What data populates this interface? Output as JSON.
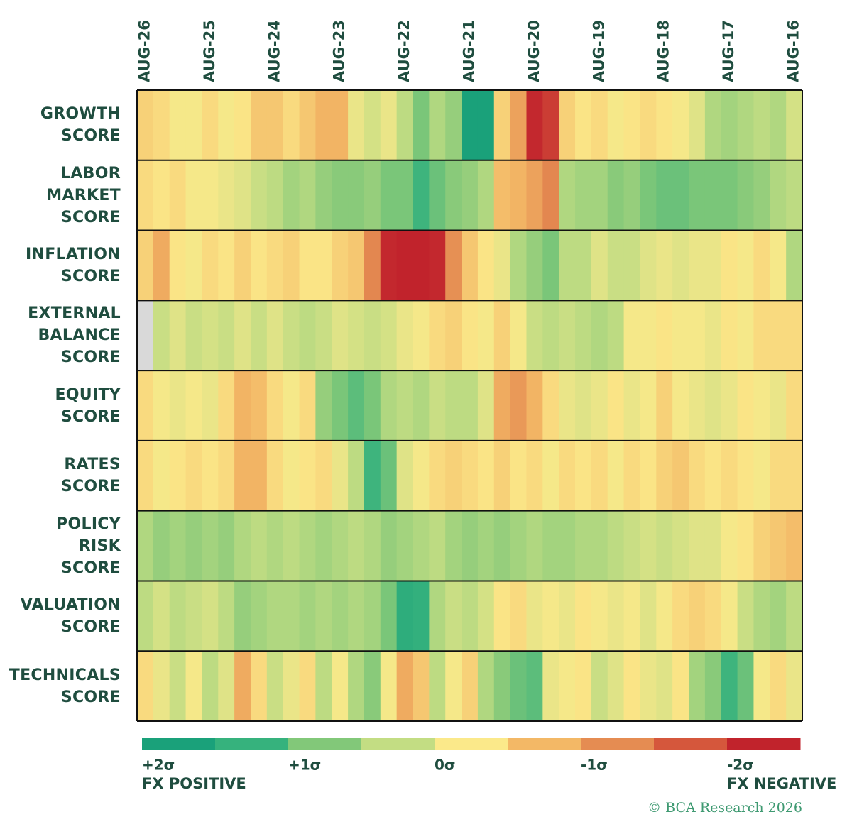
{
  "chart_data": {
    "type": "heatmap",
    "categories": [
      "AUG-26",
      null,
      null,
      null,
      "AUG-25",
      null,
      null,
      null,
      "AUG-24",
      null,
      null,
      null,
      "AUG-23",
      null,
      null,
      null,
      "AUG-22",
      null,
      null,
      null,
      "AUG-21",
      null,
      null,
      null,
      "AUG-20",
      null,
      null,
      null,
      "AUG-19",
      null,
      null,
      null,
      "AUG-18",
      null,
      null,
      null,
      "AUG-17",
      null,
      null,
      null,
      "AUG-16"
    ],
    "series": [
      {
        "name": "GROWTH\nSCORE",
        "values": [
          -0.5,
          -0.4,
          -0.2,
          -0.2,
          -0.4,
          -0.2,
          -0.3,
          -0.6,
          -0.6,
          -0.4,
          -0.6,
          -0.8,
          -0.8,
          -0.1,
          0.1,
          -0.1,
          0.3,
          0.8,
          0.4,
          0.6,
          1.8,
          1.8,
          -0.5,
          -1.0,
          -2.2,
          -2.0,
          -0.5,
          -0.3,
          -0.4,
          -0.2,
          -0.3,
          -0.4,
          -0.3,
          -0.2,
          0,
          0.4,
          0.5,
          0.4,
          0.3,
          0.4,
          0.1
        ]
      },
      {
        "name": "LABOR\nMARKET\nSCORE",
        "values": [
          -0.4,
          -0.3,
          -0.4,
          -0.2,
          -0.2,
          -0.1,
          0,
          0.2,
          0.3,
          0.5,
          0.4,
          0.6,
          0.7,
          0.7,
          0.6,
          0.8,
          0.8,
          1.2,
          0.9,
          0.7,
          0.6,
          0.4,
          -0.7,
          -0.8,
          -1.0,
          -1.3,
          0.4,
          0.5,
          0.5,
          0.7,
          0.6,
          0.8,
          0.9,
          0.9,
          0.8,
          0.8,
          0.8,
          0.7,
          0.6,
          0.4,
          0.3
        ]
      },
      {
        "name": "INFLATION\nSCORE",
        "values": [
          -0.5,
          -0.9,
          -0.3,
          -0.2,
          -0.4,
          -0.3,
          -0.5,
          -0.3,
          -0.4,
          -0.5,
          -0.3,
          -0.3,
          -0.5,
          -0.6,
          -1.3,
          -2.2,
          -2.3,
          -2.3,
          -2.2,
          -1.2,
          -0.6,
          -0.3,
          -0.1,
          0.4,
          0.6,
          0.8,
          0.3,
          0.3,
          0,
          0.2,
          0.2,
          0,
          -0.1,
          0,
          -0.1,
          -0.1,
          -0.3,
          -0.2,
          -0.4,
          -0.2,
          0.4
        ]
      },
      {
        "name": "EXTERNAL\nBALANCE\nSCORE",
        "values": [
          null,
          0.2,
          0,
          0.2,
          0.1,
          0.2,
          0,
          0.2,
          0,
          0.2,
          0.3,
          0.2,
          0,
          0.1,
          0.2,
          0.1,
          -0.1,
          -0.2,
          -0.4,
          -0.5,
          -0.3,
          -0.2,
          -0.5,
          -0.2,
          0.2,
          0.3,
          0.2,
          0.3,
          0.4,
          0.3,
          -0.2,
          -0.2,
          -0.3,
          -0.2,
          -0.2,
          -0.1,
          -0.3,
          -0.2,
          -0.4,
          -0.4,
          -0.4
        ]
      },
      {
        "name": "EQUITY\nSCORE",
        "values": [
          -0.4,
          -0.2,
          -0.1,
          -0.2,
          -0.1,
          -0.4,
          -0.8,
          -0.7,
          -0.4,
          -0.2,
          -0.4,
          0.6,
          0.8,
          1.0,
          0.8,
          0.4,
          0.3,
          0.4,
          0.2,
          0.3,
          0.3,
          0,
          -0.9,
          -1.1,
          -0.8,
          -0.4,
          -0.1,
          0,
          -0.1,
          -0.3,
          -0.1,
          -0.2,
          -0.5,
          -0.2,
          -0.1,
          0,
          -0.1,
          -0.3,
          -0.2,
          -0.1,
          -0.4
        ]
      },
      {
        "name": "RATES\nSCORE",
        "values": [
          -0.4,
          -0.2,
          -0.3,
          -0.4,
          -0.3,
          -0.4,
          -0.8,
          -0.8,
          -0.4,
          -0.2,
          -0.3,
          -0.4,
          -0.1,
          0.3,
          1.2,
          0.9,
          0,
          -0.2,
          -0.4,
          -0.5,
          -0.4,
          -0.3,
          -0.5,
          -0.3,
          -0.4,
          -0.2,
          -0.4,
          -0.3,
          -0.4,
          -0.2,
          -0.4,
          -0.3,
          -0.5,
          -0.6,
          -0.4,
          -0.3,
          -0.4,
          -0.3,
          -0.2,
          -0.4,
          -0.4
        ]
      },
      {
        "name": "POLICY\nRISK\nSCORE",
        "values": [
          0.4,
          0.6,
          0.5,
          0.6,
          0.5,
          0.6,
          0.4,
          0.3,
          0.4,
          0.3,
          0.4,
          0.5,
          0.4,
          0.3,
          0.4,
          0.6,
          0.5,
          0.4,
          0.3,
          0.5,
          0.6,
          0.5,
          0.6,
          0.5,
          0.4,
          0.5,
          0.5,
          0.4,
          0.4,
          0.3,
          0.2,
          0.1,
          0.2,
          0.1,
          0,
          0,
          -0.2,
          -0.3,
          -0.5,
          -0.6,
          -0.7
        ]
      },
      {
        "name": "VALUATION\nSCORE",
        "values": [
          0.3,
          0.1,
          0.3,
          0.2,
          0.1,
          0.3,
          0.6,
          0.5,
          0.4,
          0.4,
          0.5,
          0.4,
          0.5,
          0.4,
          0.5,
          0.8,
          1.4,
          1.3,
          0.4,
          0.2,
          0.3,
          0.1,
          -0.3,
          -0.4,
          -0.1,
          -0.2,
          -0.1,
          -0.3,
          -0.2,
          -0.1,
          -0.2,
          0,
          -0.2,
          -0.4,
          -0.5,
          -0.4,
          -0.2,
          0.2,
          0.4,
          0.5,
          0.3
        ]
      },
      {
        "name": "TECHNICALS\nSCORE",
        "values": [
          -0.4,
          -0.1,
          0.2,
          -0.2,
          0.3,
          0,
          -0.9,
          -0.4,
          0.2,
          -0.1,
          -0.4,
          0.3,
          -0.2,
          0.4,
          0.7,
          -0.2,
          -0.9,
          -0.6,
          0.3,
          -0.2,
          -0.5,
          0.4,
          0.7,
          0.9,
          1.0,
          -0.1,
          -0.2,
          -0.3,
          0.2,
          0,
          -0.3,
          -0.1,
          0,
          -0.3,
          0.5,
          0.7,
          1.2,
          0.9,
          -0.2,
          -0.4,
          -0.1
        ]
      }
    ],
    "missing_color": "#d9d9d9",
    "colorbar": {
      "lim": [
        2,
        -2.5
      ],
      "colors": [
        "#1aa17a",
        "#36b27d",
        "#82c879",
        "#c3dd83",
        "#fbe98a",
        "#f3b866",
        "#e58c52",
        "#d5573c",
        "#c1232c"
      ],
      "ticks": [
        {
          "value": 2,
          "label": "+2σ"
        },
        {
          "value": 1,
          "label": "+1σ"
        },
        {
          "value": 0,
          "label": "0σ"
        },
        {
          "value": -1,
          "label": "-1σ"
        },
        {
          "value": -2,
          "label": "-2σ"
        }
      ],
      "left_label": "FX POSITIVE",
      "right_label": "FX NEGATIVE"
    },
    "credit": "© BCA Research 2026"
  }
}
